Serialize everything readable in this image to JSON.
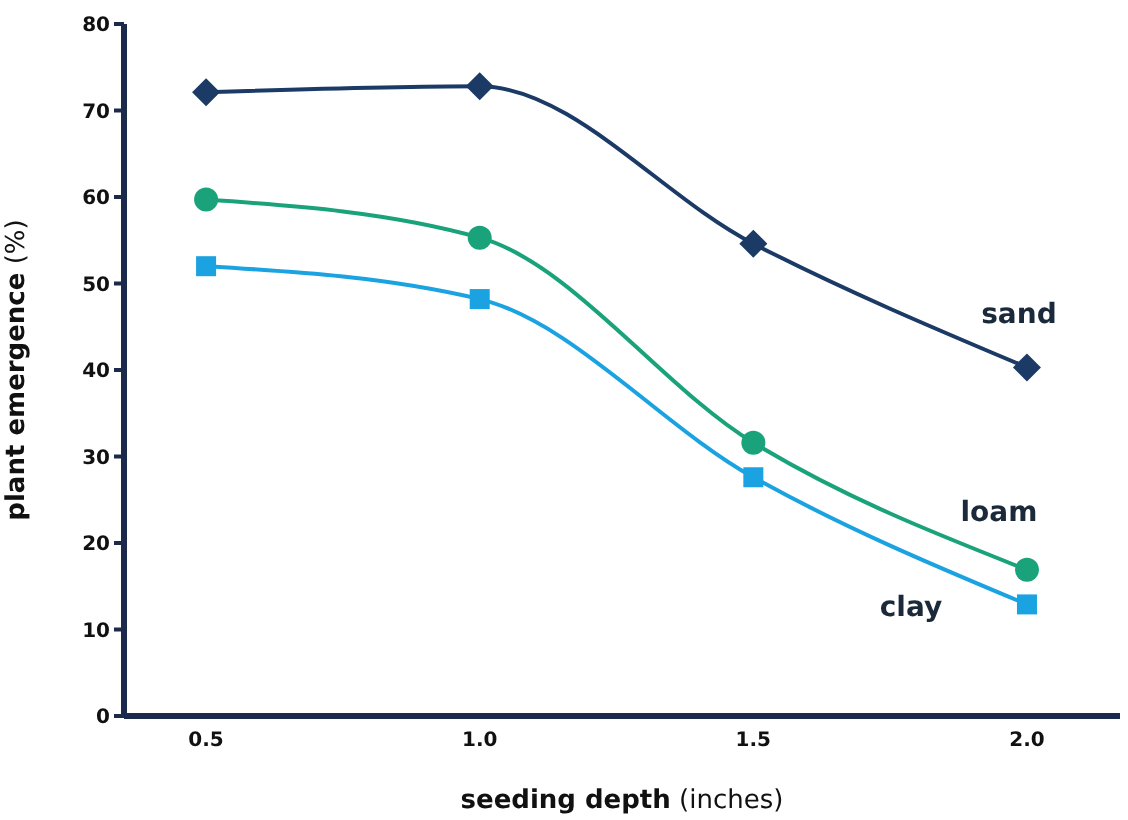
{
  "chart_data": {
    "type": "line",
    "xlabel": "seeding depth (inches)",
    "ylabel": "plant emergence (%)",
    "x": [
      0.5,
      1.0,
      1.5,
      2.0
    ],
    "xlim": [
      0.35,
      2.17
    ],
    "xticks": [
      0.5,
      {
        "value": 1,
        "label": "1.0"
      },
      1.5,
      {
        "value": 2,
        "label": "2.0"
      }
    ],
    "ylim": [
      0,
      80
    ],
    "yticks": [
      0,
      10,
      20,
      30,
      40,
      50,
      60,
      70,
      80
    ],
    "grid": false,
    "legend": false,
    "series": [
      {
        "name": "sand",
        "color": "#1b3a66",
        "marker": "diamond",
        "values": [
          72.1,
          72.8,
          54.6,
          40.3
        ]
      },
      {
        "name": "loam",
        "color": "#1aa37a",
        "marker": "circle",
        "values": [
          59.7,
          55.3,
          31.6,
          16.9
        ]
      },
      {
        "name": "clay",
        "color": "#1aa3e0",
        "marker": "square",
        "values": [
          52,
          48.2,
          27.6,
          12.9
        ]
      }
    ]
  }
}
